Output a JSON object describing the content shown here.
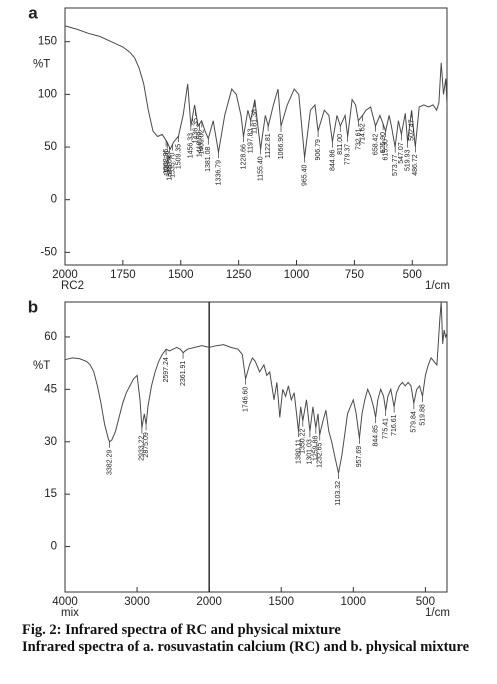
{
  "chart_data": [
    {
      "type": "line",
      "panel": "a",
      "ylabel": "%T",
      "xlabel": "1/cm",
      "sample": "RC2",
      "xlim": [
        2000,
        350
      ],
      "xticks": [
        2000,
        1750,
        1500,
        1250,
        1000,
        750,
        500
      ],
      "ylim": [
        -62,
        182
      ],
      "yticks": [
        150,
        100,
        50,
        0,
        -50
      ],
      "x": [
        2000,
        1950,
        1900,
        1850,
        1800,
        1750,
        1720,
        1700,
        1680,
        1660,
        1640,
        1620,
        1600,
        1580,
        1560,
        1545,
        1530,
        1510,
        1490,
        1470,
        1456,
        1440,
        1425,
        1410,
        1395,
        1381,
        1360,
        1337,
        1310,
        1280,
        1260,
        1240,
        1229,
        1210,
        1198,
        1180,
        1155,
        1135,
        1122,
        1100,
        1080,
        1067,
        1040,
        1010,
        990,
        965,
        940,
        920,
        907,
        880,
        860,
        845,
        825,
        811,
        790,
        779,
        760,
        745,
        733,
        715,
        700,
        680,
        659,
        640,
        626,
        615,
        600,
        590,
        574,
        560,
        547,
        530,
        520,
        503,
        487,
        470,
        450,
        430,
        410,
        395,
        385,
        375,
        365,
        355,
        350
      ],
      "series": [
        {
          "color": "#4a4a4a",
          "values": [
            165,
            162,
            158,
            155,
            150,
            145,
            140,
            135,
            125,
            110,
            85,
            65,
            60,
            62,
            55,
            48,
            55,
            60,
            80,
            110,
            70,
            90,
            70,
            75,
            65,
            58,
            75,
            45,
            80,
            105,
            100,
            80,
            60,
            85,
            75,
            95,
            48,
            80,
            70,
            90,
            105,
            70,
            90,
            105,
            100,
            40,
            85,
            90,
            65,
            85,
            80,
            55,
            80,
            70,
            80,
            60,
            95,
            90,
            75,
            80,
            85,
            88,
            70,
            80,
            72,
            65,
            80,
            70,
            50,
            75,
            62,
            82,
            55,
            85,
            50,
            88,
            90,
            88,
            90,
            85,
            92,
            130,
            100,
            115,
            90
          ]
        }
      ],
      "peaks": [
        {
          "value": 1563.35,
          "label": "1563.35"
        },
        {
          "value": 1558.26,
          "label": "1558.26"
        },
        {
          "value": 1548.69,
          "label": "1548.69"
        },
        {
          "value": 1535.7,
          "label": "1535.70"
        },
        {
          "value": 1509.35,
          "label": "1509.35"
        },
        {
          "value": 1456.33,
          "label": "1456.33"
        },
        {
          "value": 1436.35,
          "label": "1436.35"
        },
        {
          "value": 1418.69,
          "label": "1418.69"
        },
        {
          "value": 1409.02,
          "label": "1409.02"
        },
        {
          "value": 1381.08,
          "label": "1381.08"
        },
        {
          "value": 1336.79,
          "label": "1336.79"
        },
        {
          "value": 1228.66,
          "label": "1228.66"
        },
        {
          "value": 1197.83,
          "label": "1197.83"
        },
        {
          "value": 1181.38,
          "label": "1181.38"
        },
        {
          "value": 1155.4,
          "label": "1155.40"
        },
        {
          "value": 1122.81,
          "label": "1122.81"
        },
        {
          "value": 1066.9,
          "label": "1066.90"
        },
        {
          "value": 965.4,
          "label": "965.40"
        },
        {
          "value": 906.79,
          "label": "906.79"
        },
        {
          "value": 844.86,
          "label": "844.86"
        },
        {
          "value": 811,
          "label": "811.00"
        },
        {
          "value": 779.37,
          "label": "779.37"
        },
        {
          "value": 732.61,
          "label": "732.61"
        },
        {
          "value": 714.62,
          "label": "714.62"
        },
        {
          "value": 658.42,
          "label": "658.42"
        },
        {
          "value": 625.9,
          "label": "625.90"
        },
        {
          "value": 615.3,
          "label": "615.30"
        },
        {
          "value": 573.77,
          "label": "573.77"
        },
        {
          "value": 547.07,
          "label": "547.07"
        },
        {
          "value": 519.93,
          "label": "519.93"
        },
        {
          "value": 502.47,
          "label": "502.47"
        },
        {
          "value": 486.72,
          "label": "486.72"
        }
      ]
    },
    {
      "type": "line",
      "panel": "b",
      "ylabel": "%T",
      "xlabel": "1/cm",
      "sample": "mix",
      "xlim": [
        4000,
        350
      ],
      "xbreak": 2000,
      "xticks": [
        4000,
        3000,
        2000,
        1500,
        1000,
        500
      ],
      "ylim": [
        -13,
        70
      ],
      "yticks": [
        60,
        45,
        30,
        15,
        0
      ],
      "x": [
        4000,
        3900,
        3800,
        3700,
        3650,
        3600,
        3550,
        3500,
        3450,
        3400,
        3382,
        3350,
        3300,
        3250,
        3200,
        3150,
        3100,
        3050,
        3000,
        2960,
        2933,
        2900,
        2875,
        2850,
        2800,
        2750,
        2700,
        2650,
        2597,
        2550,
        2500,
        2450,
        2400,
        2362,
        2300,
        2200,
        2100,
        2000,
        1950,
        1900,
        1850,
        1800,
        1770,
        1747,
        1720,
        1700,
        1680,
        1650,
        1620,
        1600,
        1580,
        1550,
        1530,
        1510,
        1490,
        1470,
        1450,
        1430,
        1410,
        1380,
        1365,
        1350,
        1325,
        1301,
        1280,
        1260,
        1245,
        1233,
        1210,
        1190,
        1170,
        1150,
        1130,
        1103,
        1080,
        1060,
        1040,
        1020,
        1000,
        980,
        958,
        940,
        920,
        900,
        880,
        860,
        845,
        830,
        810,
        790,
        775,
        760,
        740,
        717,
        700,
        680,
        660,
        640,
        620,
        600,
        580,
        560,
        540,
        520,
        500,
        480,
        460,
        440,
        420,
        400,
        390,
        380,
        370,
        360,
        350
      ],
      "series": [
        {
          "color": "#4a4a4a",
          "values": [
            53.5,
            54,
            53.8,
            53,
            52,
            50,
            46,
            41,
            35,
            31,
            30,
            30.5,
            33,
            37,
            41,
            44,
            46,
            48,
            49,
            42,
            34,
            38,
            35,
            40,
            46,
            50,
            53,
            55,
            56.5,
            56,
            56.5,
            57,
            56.5,
            55.5,
            56.5,
            57,
            57.5,
            57,
            57.5,
            57.8,
            57,
            56.5,
            55,
            48,
            52,
            54,
            53,
            50,
            52,
            49,
            50,
            42,
            47,
            37,
            45,
            43,
            46,
            42,
            44,
            33,
            40,
            36,
            42,
            33,
            40,
            34,
            38,
            32,
            36,
            39,
            33,
            30,
            26,
            21,
            26,
            32,
            38,
            40,
            42,
            38,
            31,
            38,
            42,
            45,
            43,
            40,
            37,
            42,
            45,
            43,
            39,
            43,
            45,
            40,
            44,
            46,
            47,
            46,
            47,
            46,
            41,
            45,
            46,
            43,
            49,
            52,
            54,
            53,
            52,
            65,
            70,
            58,
            62,
            60,
            61
          ]
        }
      ],
      "peaks": [
        {
          "value": 3382.29,
          "label": "3382.29"
        },
        {
          "value": 2933.22,
          "label": "2933.22"
        },
        {
          "value": 2875.09,
          "label": "2875.09"
        },
        {
          "value": 2597.24,
          "label": "2597.24"
        },
        {
          "value": 2361.91,
          "label": "2361.91"
        },
        {
          "value": 1746.6,
          "label": "1746.60"
        },
        {
          "value": 1380.11,
          "label": "1380.11"
        },
        {
          "value": 1350.22,
          "label": "1350.22"
        },
        {
          "value": 1301.03,
          "label": "1301.03"
        },
        {
          "value": 1259.88,
          "label": "1259.88"
        },
        {
          "value": 1232.65,
          "label": "1232.65"
        },
        {
          "value": 1103.32,
          "label": "1103.32"
        },
        {
          "value": 957.69,
          "label": "957.69"
        },
        {
          "value": 844.85,
          "label": "844.85"
        },
        {
          "value": 775.41,
          "label": "775.41"
        },
        {
          "value": 716.61,
          "label": "716.61"
        },
        {
          "value": 579.84,
          "label": "579.84"
        },
        {
          "value": 519.88,
          "label": "519.88"
        }
      ]
    }
  ],
  "caption": {
    "title": "Fig. 2: Infrared spectra of RC and physical mixture",
    "text": "Infrared spectra of a. rosuvastatin calcium (RC) and b. physical mixture"
  }
}
